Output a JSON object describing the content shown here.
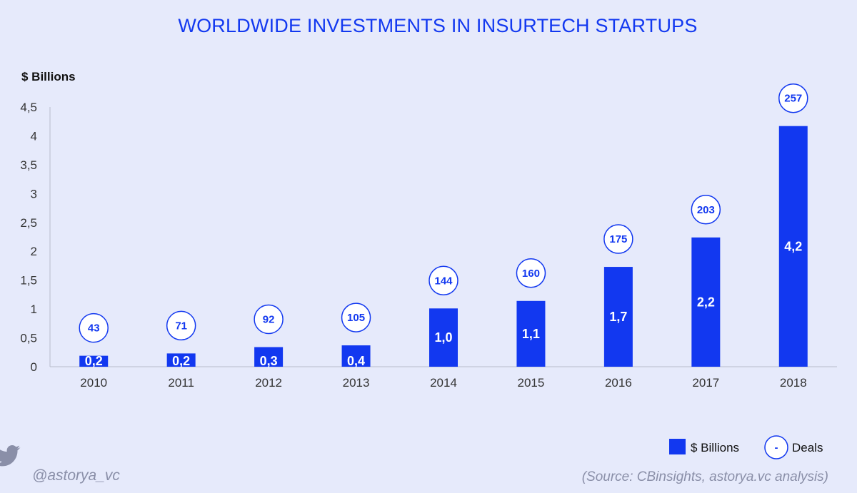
{
  "chart_data": {
    "type": "bar",
    "title": "WORLDWIDE INVESTMENTS IN INSURTECH STARTUPS",
    "ylabel": "$ Billions",
    "ylim": [
      0,
      4.5
    ],
    "yticks": [
      "0",
      "0,5",
      "1",
      "1,5",
      "2",
      "2,5",
      "3",
      "3,5",
      "4",
      "4,5"
    ],
    "categories": [
      "2010",
      "2011",
      "2012",
      "2013",
      "2014",
      "2015",
      "2016",
      "2017",
      "2018"
    ],
    "series": [
      {
        "name": "$ Billions",
        "values": [
          0.19,
          0.23,
          0.34,
          0.37,
          1.01,
          1.14,
          1.73,
          2.24,
          4.17
        ],
        "labels": [
          "0,2",
          "0,2",
          "0,3",
          "0,4",
          "1,0",
          "1,1",
          "1,7",
          "2,2",
          "4,2"
        ],
        "color": "#1238f0"
      },
      {
        "name": "Deals",
        "values": [
          43,
          71,
          92,
          105,
          144,
          160,
          175,
          203,
          257
        ],
        "labels": [
          "43",
          "71",
          "92",
          "105",
          "144",
          "160",
          "175",
          "203",
          "257"
        ],
        "color": "#1238f0"
      }
    ],
    "grid": false,
    "legend": {
      "position": "bottom-right",
      "bar_entry": "$ Billions",
      "deal_entry": "Deals",
      "deal_symbol": "-"
    }
  },
  "footer": {
    "twitter_handle": "@astorya_vc",
    "source": "(Source: CBinsights, astorya.vc analysis)"
  },
  "colors": {
    "accent": "#1238f0",
    "background": "#e6eafb",
    "muted": "#8a8fa8"
  }
}
